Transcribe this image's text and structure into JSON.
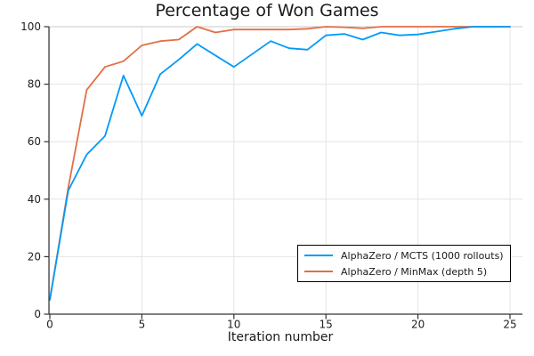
{
  "chart_data": {
    "type": "line",
    "title": "Percentage of Won Games",
    "xlabel": "Iteration number",
    "ylabel": "",
    "x": [
      0,
      1,
      2,
      3,
      4,
      5,
      6,
      7,
      8,
      9,
      10,
      11,
      12,
      13,
      14,
      15,
      16,
      17,
      18,
      19,
      20,
      21,
      22,
      23,
      24,
      25
    ],
    "series": [
      {
        "name": "AlphaZero / MCTS (1000 rollouts)",
        "color": "#009af9",
        "values": [
          5,
          43,
          55.5,
          62,
          83,
          69,
          83.5,
          88.5,
          94,
          90,
          86,
          90.5,
          95,
          92.5,
          92,
          97,
          97.5,
          95.5,
          98,
          97,
          97.3,
          98.3,
          99.3,
          100,
          100,
          100
        ]
      },
      {
        "name": "AlphaZero / MinMax (depth 5)",
        "color": "#e26f46",
        "values": [
          5,
          44,
          78,
          86,
          88,
          93.5,
          95,
          95.5,
          100,
          98,
          99,
          99,
          99,
          99,
          99.3,
          100,
          99.8,
          99.4,
          100,
          100,
          100,
          100,
          100,
          100,
          100,
          100
        ]
      }
    ],
    "xticks": [
      0,
      5,
      10,
      15,
      20,
      25
    ],
    "yticks": [
      0,
      20,
      40,
      60,
      80,
      100
    ],
    "xlim": [
      0,
      25
    ],
    "ylim": [
      0,
      100
    ],
    "grid": true,
    "legend_position": "bottom-right"
  },
  "colors": {
    "background": "#ffffff",
    "gridline": "#e4e4e4",
    "top_frame": "#c9c9c9",
    "axis": "#333333",
    "tick_label": "#1f1f1f",
    "legend_border": "#000000"
  }
}
